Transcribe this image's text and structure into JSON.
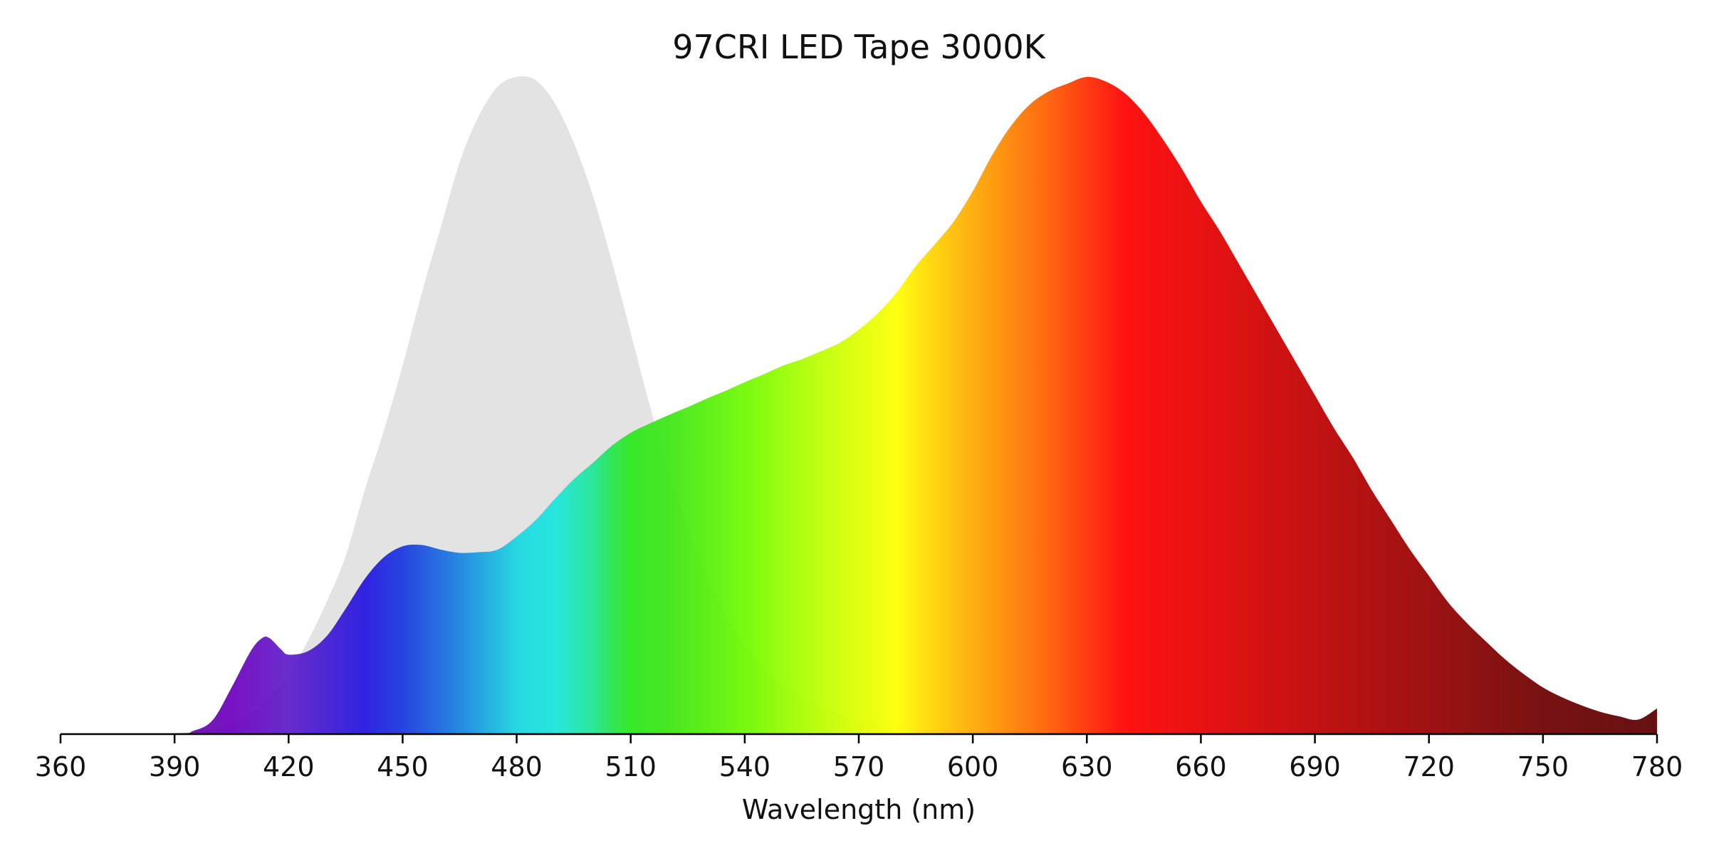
{
  "chart_data": {
    "type": "area",
    "title": "97CRI LED Tape 3000K",
    "xlabel": "Wavelength (nm)",
    "ylabel": "",
    "xlim": [
      360,
      780
    ],
    "ylim": [
      0,
      1.0
    ],
    "xticks": [
      360,
      390,
      420,
      450,
      480,
      510,
      540,
      570,
      600,
      630,
      660,
      690,
      720,
      750,
      780
    ],
    "grid": false,
    "legend": "none",
    "fill_style": "visible-spectrum gradient",
    "series": [
      {
        "role": "reference-curve",
        "color": "#e3e3e3",
        "x": [
          360,
          390,
          395,
          400,
          405,
          410,
          415,
          420,
          425,
          430,
          435,
          440,
          445,
          450,
          455,
          460,
          465,
          470,
          475,
          480,
          485,
          490,
          495,
          500,
          505,
          510,
          515,
          520,
          525,
          530,
          535,
          540,
          545,
          550,
          555,
          560,
          565,
          570,
          575,
          580,
          585,
          590,
          595,
          600,
          610,
          620,
          640,
          700,
          780
        ],
        "y": [
          0,
          0,
          0.002,
          0.006,
          0.013,
          0.03,
          0.055,
          0.09,
          0.14,
          0.2,
          0.27,
          0.37,
          0.46,
          0.56,
          0.67,
          0.77,
          0.87,
          0.94,
          0.985,
          1.0,
          0.995,
          0.96,
          0.9,
          0.82,
          0.72,
          0.61,
          0.5,
          0.4,
          0.315,
          0.24,
          0.18,
          0.135,
          0.1,
          0.075,
          0.055,
          0.04,
          0.029,
          0.021,
          0.015,
          0.011,
          0.008,
          0.006,
          0.004,
          0.003,
          0.002,
          0.001,
          0.0005,
          0,
          0
        ]
      },
      {
        "role": "spectrum",
        "x": [
          360,
          390,
          395,
          400,
          405,
          410,
          413,
          415,
          418,
          420,
          425,
          430,
          435,
          440,
          445,
          450,
          455,
          460,
          465,
          470,
          475,
          480,
          485,
          490,
          495,
          500,
          505,
          510,
          515,
          520,
          525,
          530,
          535,
          540,
          545,
          550,
          555,
          560,
          565,
          570,
          575,
          580,
          585,
          590,
          595,
          600,
          605,
          610,
          615,
          620,
          625,
          630,
          635,
          640,
          645,
          650,
          655,
          660,
          665,
          670,
          675,
          680,
          685,
          690,
          695,
          700,
          705,
          710,
          715,
          720,
          725,
          730,
          735,
          740,
          745,
          750,
          755,
          760,
          765,
          770,
          775,
          780
        ],
        "y": [
          0,
          0,
          0.004,
          0.02,
          0.07,
          0.125,
          0.145,
          0.145,
          0.128,
          0.12,
          0.125,
          0.148,
          0.19,
          0.235,
          0.268,
          0.285,
          0.287,
          0.28,
          0.275,
          0.276,
          0.28,
          0.3,
          0.325,
          0.357,
          0.387,
          0.412,
          0.438,
          0.458,
          0.472,
          0.485,
          0.497,
          0.51,
          0.522,
          0.535,
          0.547,
          0.56,
          0.57,
          0.582,
          0.595,
          0.615,
          0.64,
          0.672,
          0.712,
          0.745,
          0.78,
          0.826,
          0.88,
          0.925,
          0.958,
          0.978,
          0.99,
          1.0,
          0.993,
          0.975,
          0.945,
          0.905,
          0.86,
          0.81,
          0.765,
          0.715,
          0.665,
          0.615,
          0.565,
          0.515,
          0.465,
          0.42,
          0.37,
          0.325,
          0.28,
          0.24,
          0.2,
          0.168,
          0.14,
          0.113,
          0.09,
          0.07,
          0.055,
          0.043,
          0.033,
          0.026,
          0.021,
          0.038
        ]
      }
    ]
  }
}
